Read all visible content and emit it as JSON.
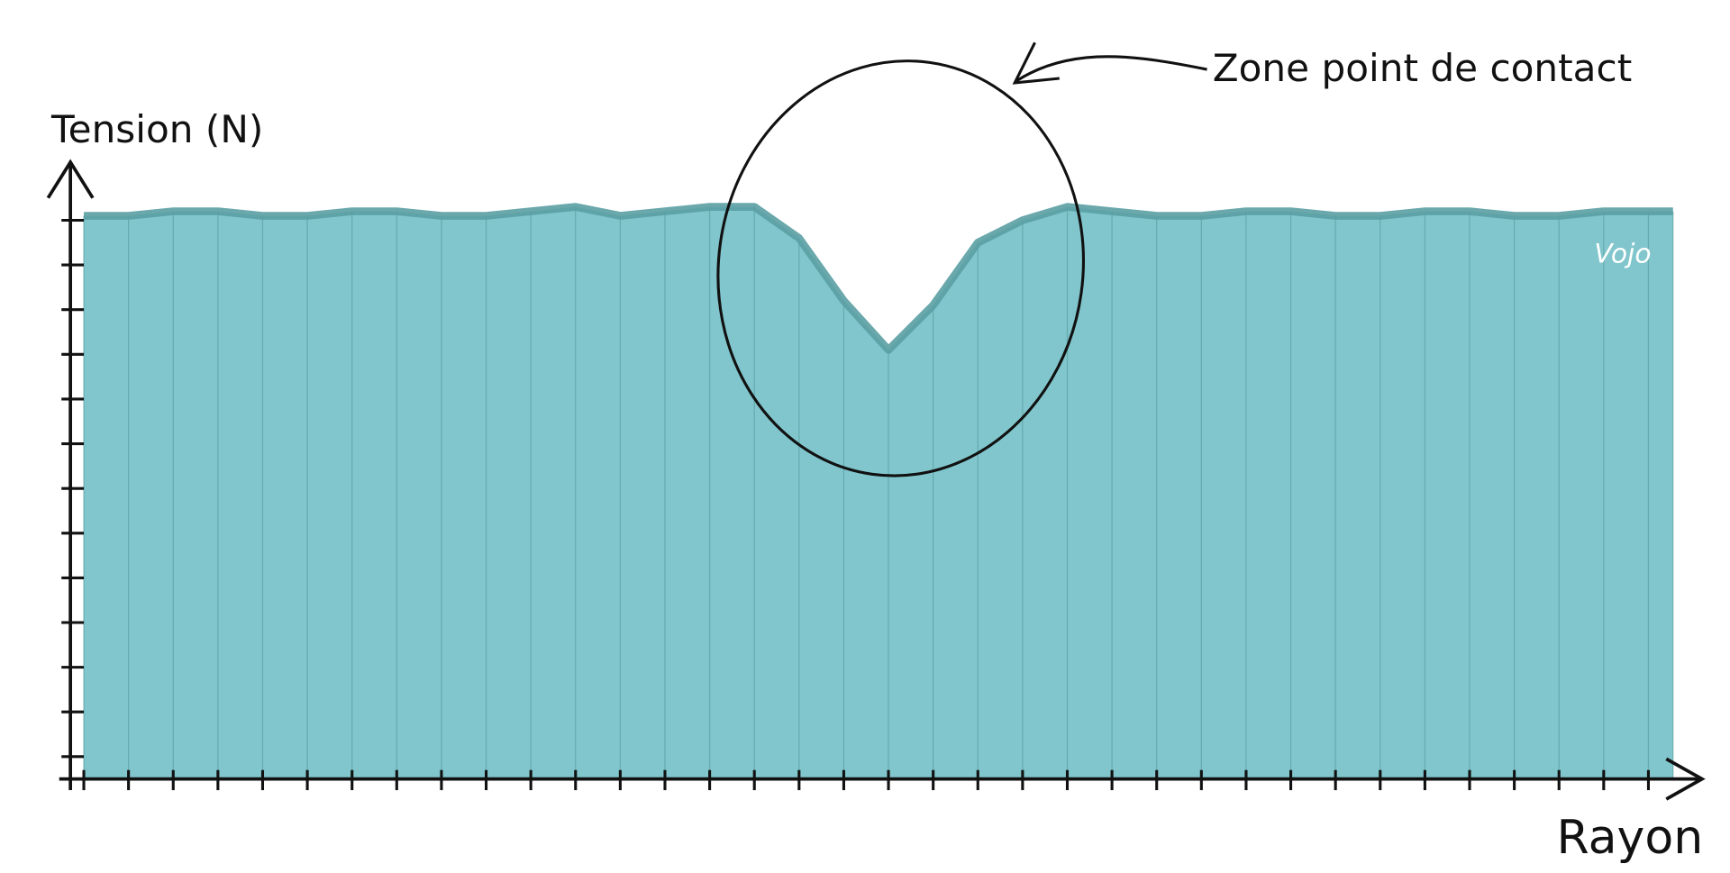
{
  "chart_data": {
    "type": "area",
    "y_label": "Tension (N)",
    "x_label": "Rayon",
    "annotation": "Zone point de contact",
    "watermark": "Vojo",
    "color": "#80c6cc",
    "line_color": "#5a9fa3",
    "x": [
      0,
      1,
      2,
      3,
      4,
      5,
      6,
      7,
      8,
      9,
      10,
      11,
      12,
      13,
      14,
      15,
      16,
      17,
      18,
      19,
      20,
      21,
      22,
      23,
      24,
      25,
      26,
      27,
      28,
      29,
      30,
      31,
      32,
      33,
      34,
      35,
      35.55
    ],
    "values": [
      12.6,
      12.6,
      12.7,
      12.7,
      12.6,
      12.6,
      12.7,
      12.7,
      12.6,
      12.6,
      12.7,
      12.8,
      12.6,
      12.7,
      12.8,
      12.8,
      12.1,
      10.7,
      9.6,
      10.6,
      12.0,
      12.5,
      12.8,
      12.7,
      12.6,
      12.6,
      12.7,
      12.7,
      12.6,
      12.6,
      12.7,
      12.7,
      12.6,
      12.6,
      12.7,
      12.7,
      12.7
    ],
    "xlim": [
      -0.3,
      36.2
    ],
    "ylim": [
      0,
      13.8
    ],
    "xticks": [
      0,
      1,
      2,
      3,
      4,
      5,
      6,
      7,
      8,
      9,
      10,
      11,
      12,
      13,
      14,
      15,
      16,
      17,
      18,
      19,
      20,
      21,
      22,
      23,
      24,
      25,
      26,
      27,
      28,
      29,
      30,
      31,
      32,
      33,
      34,
      35
    ],
    "yticks": [
      0.5,
      1.5,
      2.5,
      3.5,
      4.5,
      5.5,
      6.5,
      7.5,
      8.5,
      9.5,
      10.5,
      11.5,
      12.5
    ]
  }
}
